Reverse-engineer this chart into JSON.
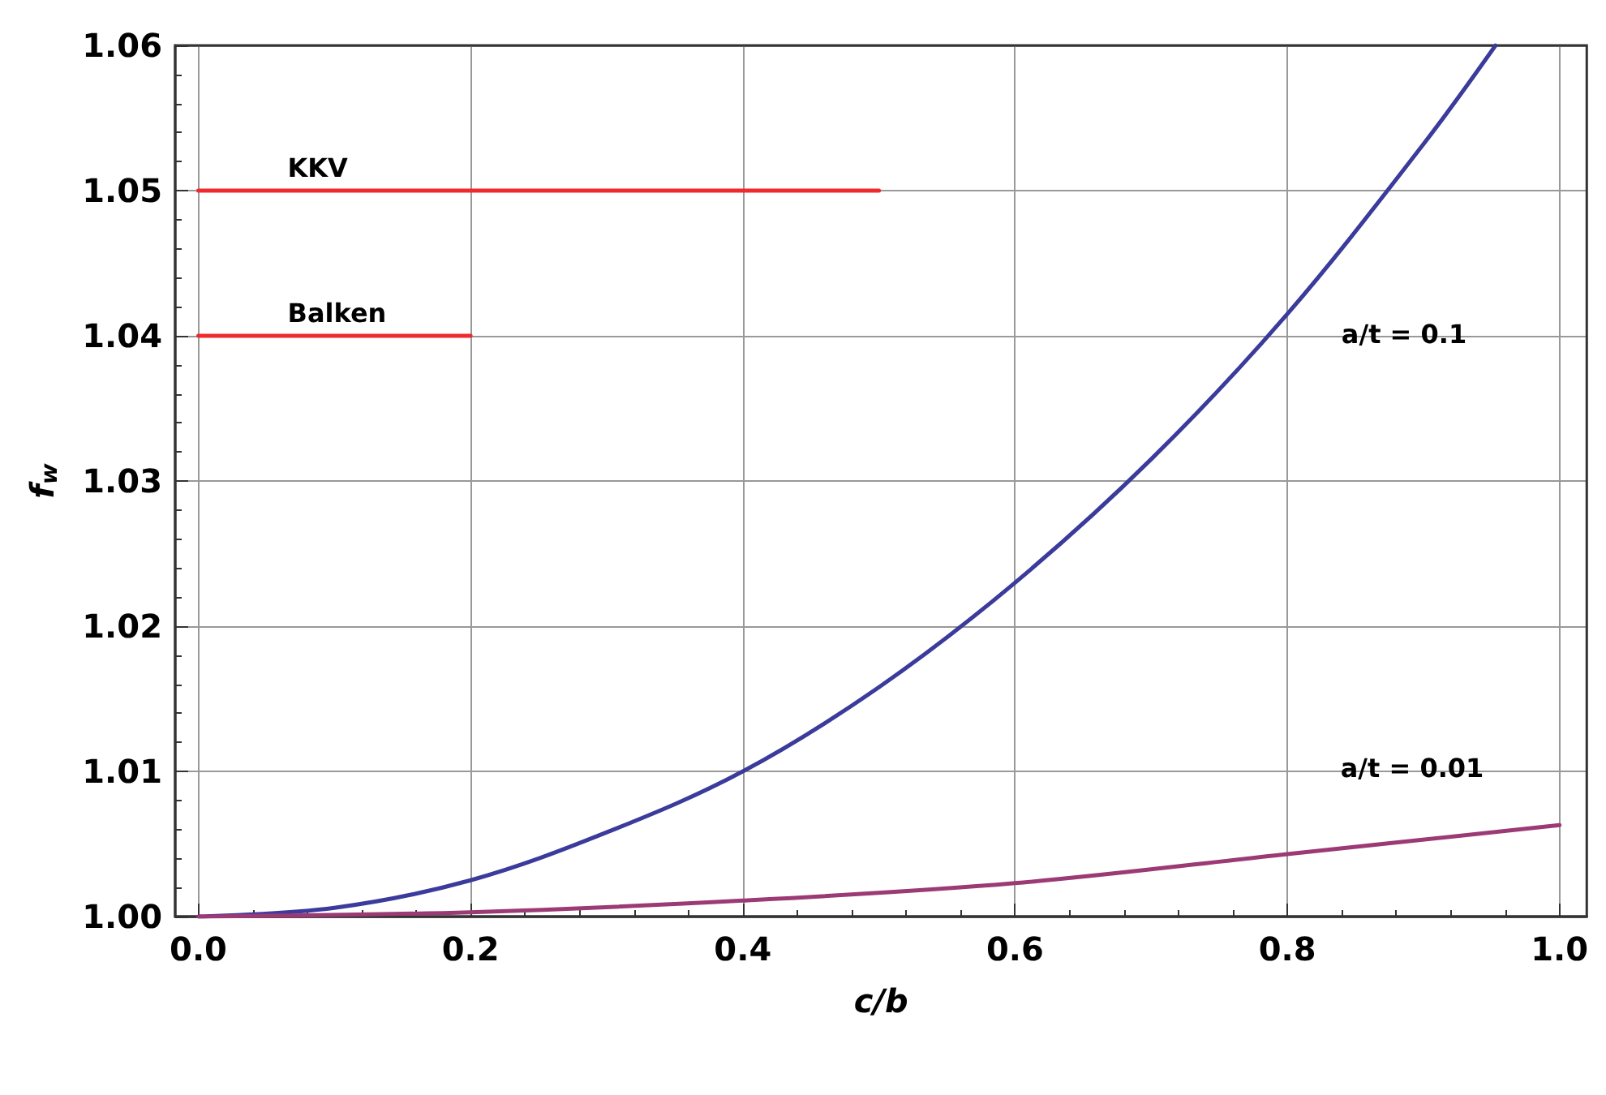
{
  "chart_data": {
    "type": "line",
    "xlabel": "c/b",
    "ylabel": "f$_{w}$",
    "xlim": [
      -0.017,
      1.02
    ],
    "ylim": [
      1.0,
      1.06
    ],
    "xticks": [
      {
        "value": 0,
        "label": "0.0"
      },
      {
        "value": 0.2,
        "label": "0.2"
      },
      {
        "value": 0.4,
        "label": "0.4"
      },
      {
        "value": 0.6,
        "label": "0.6"
      },
      {
        "value": 0.8,
        "label": "0.8"
      },
      {
        "value": 1,
        "label": "1.0"
      }
    ],
    "yticks": [
      {
        "value": 1.0,
        "label": "1.00"
      },
      {
        "value": 1.01,
        "label": "1.01"
      },
      {
        "value": 1.02,
        "label": "1.02"
      },
      {
        "value": 1.03,
        "label": "1.03"
      },
      {
        "value": 1.04,
        "label": "1.04"
      },
      {
        "value": 1.05,
        "label": "1.05"
      },
      {
        "value": 1.06,
        "label": "1.06"
      }
    ],
    "grid": true,
    "legend": false,
    "series": [
      {
        "name": "a/t = 0.1",
        "color": "#3b3b9c",
        "marker": "none",
        "x": [
          0,
          0.1,
          0.2,
          0.3,
          0.4,
          0.5,
          0.6,
          0.7,
          0.8,
          0.9,
          0.953
        ],
        "values": [
          1.0,
          1.0006,
          1.0025,
          1.0058,
          1.01,
          1.0158,
          1.023,
          1.0315,
          1.0415,
          1.0532,
          1.06
        ]
      },
      {
        "name": "a/t = 0.01",
        "color": "#9b3a74",
        "marker": "none",
        "x": [
          0,
          0.2,
          0.4,
          0.6,
          0.8,
          1.0
        ],
        "values": [
          1.0,
          1.0003,
          1.0011,
          1.0023,
          1.0043,
          1.0063
        ]
      },
      {
        "name": "KKV",
        "color": "#ee2a2f",
        "x": [
          0,
          0.5
        ],
        "values": [
          1.05,
          1.05
        ]
      },
      {
        "name": "Balken",
        "color": "#ee2a2f",
        "x": [
          0,
          0.2
        ],
        "values": [
          1.04,
          1.04
        ]
      }
    ]
  }
}
